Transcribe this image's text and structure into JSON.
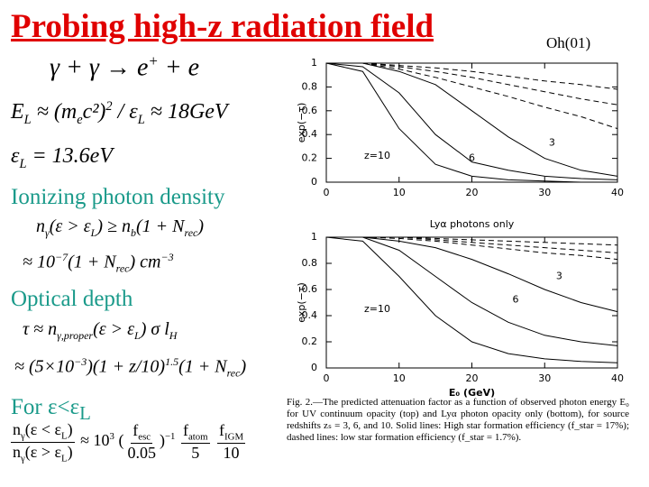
{
  "title": "Probing high-z radiation field",
  "citation": "Oh(01)",
  "headings": [
    "Ionizing photon density",
    "Optical depth"
  ],
  "formulas": [
    [
      "γ + γ → e",
      {
        "sup": "+"
      },
      " + e"
    ],
    [
      "E",
      {
        "sub": "L"
      },
      " ≈ (m",
      {
        "sub": "e"
      },
      "c²)",
      {
        "sup": "2"
      },
      " / ε",
      {
        "sub": "L"
      },
      " ≈ 18GeV"
    ],
    [
      "ε",
      {
        "sub": "L"
      },
      " = 13.6eV"
    ],
    [
      "n",
      {
        "sub": "γ"
      },
      "(ε > ε",
      {
        "sub": "L"
      },
      ") ≥ n",
      {
        "sub": "b"
      },
      "(1 + N",
      {
        "sub": "rec"
      },
      ")"
    ],
    [
      "≈ 10",
      {
        "sup": "−7"
      },
      "(1 + N",
      {
        "sub": "rec"
      },
      ") cm",
      {
        "sup": "−3"
      }
    ],
    [
      "τ ≈ n",
      {
        "sub": "γ,proper"
      },
      "(ε > ε",
      {
        "sub": "L"
      },
      ") σ l",
      {
        "sub": "H"
      }
    ],
    [
      "≈ (5×10",
      {
        "sup": "−3"
      },
      ")(1 + z/10)",
      {
        "sup": "1.5"
      },
      "(1 + N",
      {
        "sub": "rec"
      },
      ")"
    ],
    [
      {
        "num": [
          "n",
          {
            "sub": "γ"
          },
          "(ε < ε",
          {
            "sub": "L"
          },
          ")"
        ],
        "den": [
          "n",
          {
            "sub": "γ"
          },
          "(ε > ε",
          {
            "sub": "L"
          },
          ")"
        ]
      },
      " ≈ 10",
      {
        "sup": "3"
      },
      " (",
      {
        "num": [
          "f",
          {
            "sub": "esc"
          }
        ],
        "den": [
          "0.05"
        ]
      },
      ")",
      {
        "sup": "−1"
      },
      " ",
      {
        "num": [
          "f",
          {
            "sub": "atom"
          }
        ],
        "den": [
          "5"
        ]
      },
      " ",
      {
        "num": [
          "f",
          {
            "sub": "IGM"
          }
        ],
        "den": [
          "10"
        ]
      }
    ]
  ],
  "condition": [
    "For ε<ε",
    {
      "sub": "L"
    }
  ],
  "caption": "Fig. 2.—The predicted attenuation factor as a function of observed photon energy E₀ for UV continuum opacity (top) and Lyα photon opacity only (bottom), for source redshifts zₛ = 3, 6, and 10. Solid lines: High star formation efficiency (f_star = 17%); dashed lines: low star formation efficiency (f_star = 1.7%).",
  "chart_data": [
    {
      "type": "line",
      "ylabel": "exp(−τ)",
      "x": [
        0,
        5,
        10,
        15,
        20,
        25,
        30,
        35,
        40
      ],
      "xlim": [
        0,
        40
      ],
      "ylim": [
        0,
        1
      ],
      "xticks": [
        0,
        10,
        20,
        30,
        40
      ],
      "yticks": [
        0,
        0.2,
        0.4,
        0.6,
        0.8,
        1
      ],
      "series": [
        {
          "label": "z=10",
          "style": "solid",
          "values": [
            1,
            0.93,
            0.45,
            0.15,
            0.05,
            0.02,
            0.01,
            0,
            0
          ]
        },
        {
          "label": "6",
          "style": "solid",
          "values": [
            1,
            0.97,
            0.75,
            0.4,
            0.17,
            0.1,
            0.05,
            0.03,
            0.02
          ]
        },
        {
          "label": "3",
          "style": "solid",
          "values": [
            1,
            1,
            0.93,
            0.82,
            0.6,
            0.38,
            0.2,
            0.1,
            0.05
          ]
        },
        {
          "style": "dashed",
          "values": [
            1,
            1,
            0.95,
            0.88,
            0.8,
            0.72,
            0.63,
            0.55,
            0.45
          ]
        },
        {
          "style": "dashed",
          "values": [
            1,
            1,
            0.97,
            0.93,
            0.88,
            0.82,
            0.76,
            0.7,
            0.65
          ]
        },
        {
          "style": "dashed",
          "values": [
            1,
            1,
            0.98,
            0.96,
            0.93,
            0.89,
            0.85,
            0.82,
            0.78
          ]
        }
      ]
    },
    {
      "type": "line",
      "title": "Lyα photons only",
      "ylabel": "exp(−τ)",
      "xlabel": "E₀ (GeV)",
      "x": [
        0,
        5,
        10,
        15,
        20,
        25,
        30,
        35,
        40
      ],
      "xlim": [
        0,
        40
      ],
      "ylim": [
        0,
        1
      ],
      "xticks": [
        0,
        10,
        20,
        30,
        40
      ],
      "yticks": [
        0,
        0.2,
        0.4,
        0.6,
        0.8,
        1
      ],
      "series": [
        {
          "label": "z=10",
          "style": "solid",
          "values": [
            1,
            0.97,
            0.7,
            0.4,
            0.2,
            0.11,
            0.07,
            0.05,
            0.04
          ]
        },
        {
          "label": "6",
          "style": "solid",
          "values": [
            1,
            1,
            0.9,
            0.7,
            0.5,
            0.35,
            0.25,
            0.2,
            0.17
          ]
        },
        {
          "label": "3",
          "style": "solid",
          "values": [
            1,
            1,
            0.97,
            0.92,
            0.83,
            0.72,
            0.6,
            0.5,
            0.43
          ]
        },
        {
          "style": "dashed",
          "values": [
            1,
            1,
            1,
            0.99,
            0.98,
            0.97,
            0.96,
            0.95,
            0.94
          ]
        },
        {
          "style": "dashed",
          "values": [
            1,
            1,
            1,
            0.98,
            0.96,
            0.94,
            0.92,
            0.9,
            0.88
          ]
        },
        {
          "style": "dashed",
          "values": [
            1,
            1,
            0.99,
            0.97,
            0.94,
            0.91,
            0.88,
            0.86,
            0.83
          ]
        }
      ]
    }
  ]
}
